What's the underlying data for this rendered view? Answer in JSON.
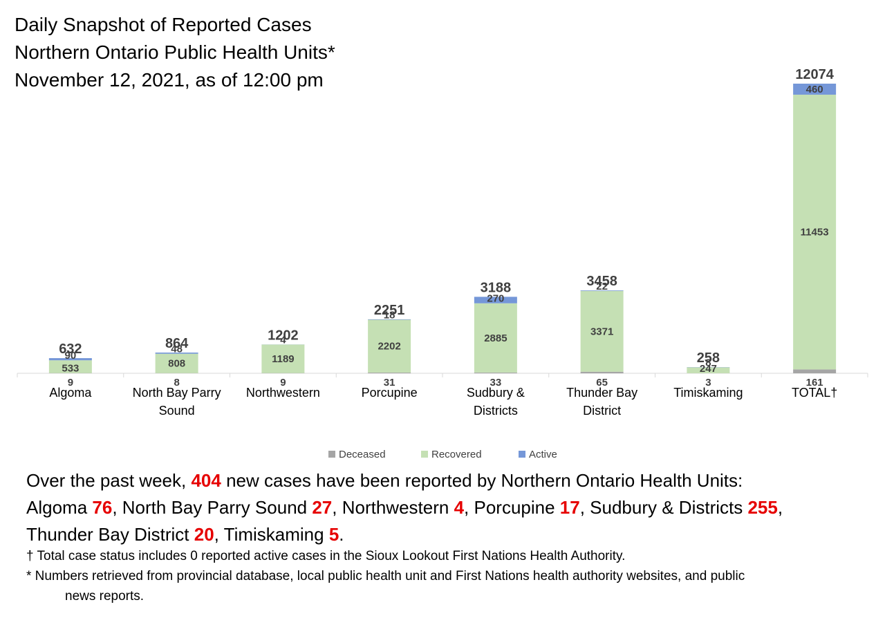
{
  "title": {
    "line1": "Daily Snapshot of Reported Cases",
    "line2": "Northern Ontario Public Health Units*",
    "line3": "November 12, 2021, as of 12:00 pm"
  },
  "colors": {
    "deceased": "#a5a5a5",
    "recovered": "#c5e0b4",
    "active": "#7597d8",
    "highlight": "#e60000",
    "label": "#404040"
  },
  "chart_data": {
    "type": "bar",
    "stacked": true,
    "categories": [
      [
        "Algoma"
      ],
      [
        "North Bay Parry",
        "Sound"
      ],
      [
        "Northwestern"
      ],
      [
        "Porcupine"
      ],
      [
        "Sudbury &",
        "Districts"
      ],
      [
        "Thunder Bay",
        "District"
      ],
      [
        "Timiskaming"
      ],
      [
        "TOTAL†"
      ]
    ],
    "series": [
      {
        "name": "Deceased",
        "values": [
          9,
          8,
          9,
          31,
          33,
          65,
          3,
          161
        ]
      },
      {
        "name": "Recovered",
        "values": [
          533,
          808,
          1189,
          2202,
          2885,
          3371,
          247,
          11453
        ]
      },
      {
        "name": "Active",
        "values": [
          90,
          48,
          4,
          18,
          270,
          22,
          8,
          460
        ]
      }
    ],
    "totals": [
      632,
      864,
      1202,
      2251,
      3188,
      3458,
      258,
      12074
    ],
    "ylim": [
      0,
      12074
    ],
    "legend_position": "bottom",
    "grid": false
  },
  "summary": {
    "intro": "Over the past week, ",
    "total_new": "404",
    "intro_end": " new cases have been reported by Northern Ontario Health Units:",
    "items": [
      {
        "name": "Algoma ",
        "value": "76",
        "sep": ", "
      },
      {
        "name": "North Bay Parry Sound ",
        "value": "27",
        "sep": ", "
      },
      {
        "name": "Northwestern ",
        "value": "4",
        "sep": ", "
      },
      {
        "name": "Porcupine ",
        "value": "17",
        "sep": ", "
      },
      {
        "name": "Sudbury & Districts ",
        "value": "255",
        "sep": ", "
      },
      {
        "name": "Thunder Bay District ",
        "value": "20",
        "sep": ", "
      },
      {
        "name": "Timiskaming ",
        "value": "5",
        "sep": "."
      }
    ]
  },
  "notes": {
    "note1": "† Total case status includes 0 reported active cases in the Sioux Lookout First Nations Health Authority.",
    "note2_a": "* Numbers retrieved from provincial database, local public health unit and First Nations health authority websites, and public",
    "note2_b": "news reports."
  }
}
